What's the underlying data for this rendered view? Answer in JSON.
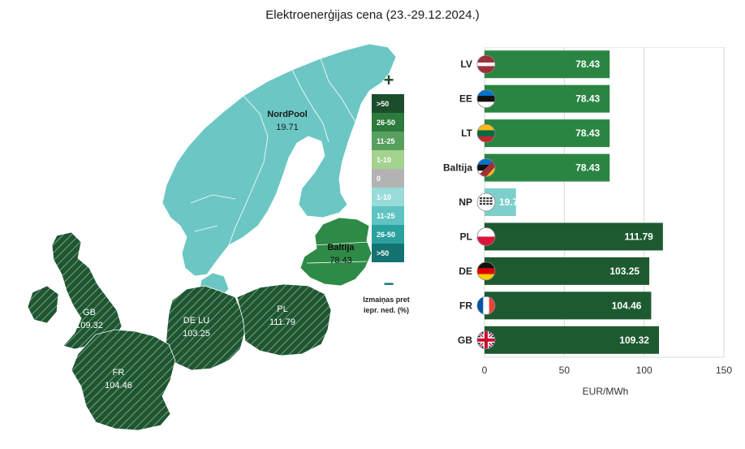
{
  "title": "Elektroenerģijas cena (23.-29.12.2024.)",
  "colors": {
    "nordpool_region": "#6cc7c4",
    "baltic_region": "#2e8b47",
    "high_region": "#1e5631",
    "hatch": "#a9c9ae",
    "bar_baltic": "#2a8543",
    "bar_np": "#7ccfcb",
    "bar_high": "#1d5a2f",
    "grid": "#d9d9d9"
  },
  "map": {
    "regions": [
      {
        "id": "nordpool",
        "name": "NordPool",
        "value": "19.71"
      },
      {
        "id": "baltija",
        "name": "Baltija",
        "value": "78.43"
      },
      {
        "id": "gb",
        "name": "GB",
        "value": "109.32"
      },
      {
        "id": "delu",
        "name": "DE LU",
        "value": "103.25"
      },
      {
        "id": "pl",
        "name": "PL",
        "value": "111.79"
      },
      {
        "id": "fr",
        "name": "FR",
        "value": "104.46"
      }
    ],
    "legend": {
      "plus_symbol": "+",
      "minus_symbol": "−",
      "items": [
        {
          "label": ">50",
          "color": "#1b4d2b"
        },
        {
          "label": "26-50",
          "color": "#2d7a3e"
        },
        {
          "label": "11-25",
          "color": "#58a05e"
        },
        {
          "label": "1-10",
          "color": "#a4d28f"
        },
        {
          "label": "0",
          "color": "#b3b3b3"
        },
        {
          "label": "1-10",
          "color": "#98dcd9"
        },
        {
          "label": "11-25",
          "color": "#5fc4c1"
        },
        {
          "label": "26-50",
          "color": "#2aa19f"
        },
        {
          "label": ">50",
          "color": "#137371"
        }
      ],
      "caption_line1": "Izmaiņas pret",
      "caption_line2": "iepr. ned. (%)"
    }
  },
  "chart_data": {
    "type": "bar",
    "orientation": "horizontal",
    "categories": [
      "LV",
      "EE",
      "LT",
      "Baltija",
      "NP",
      "PL",
      "DE",
      "FR",
      "GB"
    ],
    "values": [
      78.43,
      78.43,
      78.43,
      78.43,
      19.71,
      111.79,
      103.25,
      104.46,
      109.32
    ],
    "value_labels": [
      "78.43",
      "78.43",
      "78.43",
      "78.43",
      "19.7",
      "111.79",
      "103.25",
      "104.46",
      "109.32"
    ],
    "bar_colors": [
      "#2a8543",
      "#2a8543",
      "#2a8543",
      "#2a8543",
      "#7ccfcb",
      "#1d5a2f",
      "#1d5a2f",
      "#1d5a2f",
      "#1d5a2f"
    ],
    "flag_icons": [
      "latvia-flag-icon",
      "estonia-flag-icon",
      "lithuania-flag-icon",
      "baltic-flag-icon",
      "nordpool-logo-icon",
      "poland-flag-icon",
      "germany-flag-icon",
      "france-flag-icon",
      "uk-flag-icon"
    ],
    "xlabel": "EUR/MWh",
    "xlim": [
      0,
      150
    ],
    "xticks": [
      0,
      50,
      100,
      150
    ],
    "grid": true
  }
}
